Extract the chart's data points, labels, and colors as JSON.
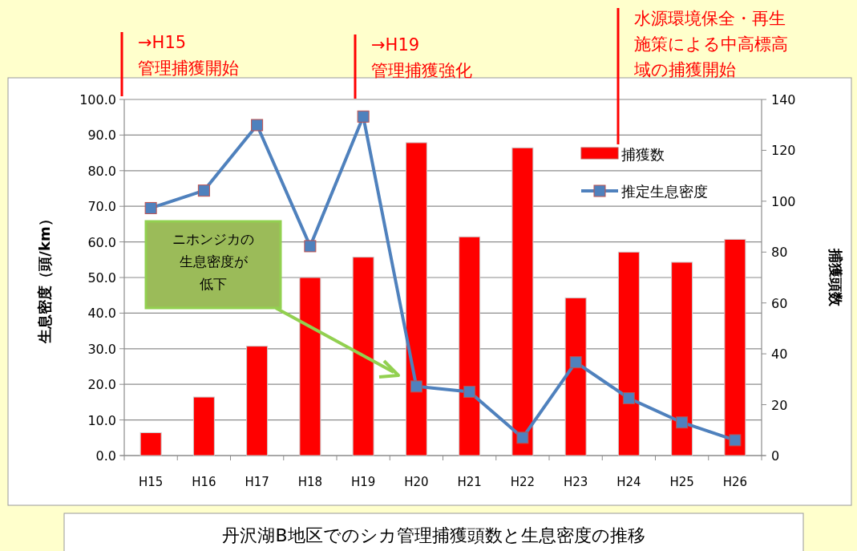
{
  "chart_data": {
    "type": "bar",
    "title": "丹沢湖B地区でのシカ管理捕獲頭数と生息密度の推移",
    "ylabel": "生息密度（頭/km）",
    "y2label": "捕獲頭数",
    "categories": [
      "H15",
      "H16",
      "H17",
      "H18",
      "H19",
      "H20",
      "H21",
      "H22",
      "H23",
      "H24",
      "H25",
      "H26"
    ],
    "series": [
      {
        "name": "捕獲数",
        "axis": "y2",
        "color": "#ff0000",
        "values": [
          9,
          23,
          43,
          70,
          78,
          123,
          86,
          121,
          62,
          80,
          76,
          85
        ]
      },
      {
        "name": "推定生息密度",
        "type": "line",
        "axis": "y",
        "color": "#4f81bd",
        "marker": "square",
        "values": [
          69.5,
          74.4,
          92.8,
          58.8,
          95.2,
          19.4,
          17.9,
          5.0,
          26.2,
          16.1,
          9.3,
          4.3
        ]
      }
    ],
    "ylim": [
      0,
      100
    ],
    "yticks": [
      {
        "value": 0,
        "label": "0.0"
      },
      {
        "value": 10,
        "label": "10.0"
      },
      {
        "value": 20,
        "label": "20.0"
      },
      {
        "value": 30,
        "label": "30.0"
      },
      {
        "value": 40,
        "label": "40.0"
      },
      {
        "value": 50,
        "label": "50.0"
      },
      {
        "value": 60,
        "label": "60.0"
      },
      {
        "value": 70,
        "label": "70.0"
      },
      {
        "value": 80,
        "label": "80.0"
      },
      {
        "value": 90,
        "label": "90.0"
      },
      {
        "value": 100,
        "label": "100.0"
      }
    ],
    "y2lim": [
      0,
      140
    ],
    "y2ticks": [
      0,
      20,
      40,
      60,
      80,
      100,
      120,
      140
    ],
    "grid": "y",
    "legend": "top right",
    "annotations": [
      "→H15管理捕獲開始",
      "→H19管理捕獲強化",
      "水源環境保全・再生施策による中高標高域の捕獲開始",
      "ニホンジカの生息密度が低下"
    ]
  }
}
